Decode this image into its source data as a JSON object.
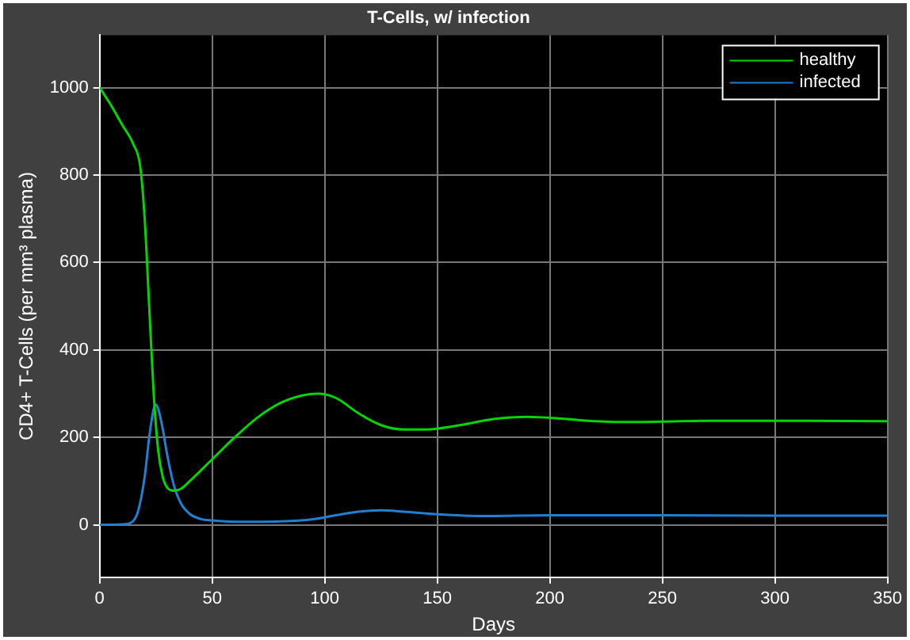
{
  "chart_data": {
    "type": "line",
    "title": "T-Cells, w/ infection",
    "xlabel": "Days",
    "ylabel": "CD4+ T-Cells (per mm³ plasma)",
    "xlim": [
      0,
      350
    ],
    "xticks": [
      0,
      50,
      100,
      150,
      200,
      250,
      300,
      350
    ],
    "ylim": [
      -120,
      1120
    ],
    "yticks": [
      0,
      200,
      400,
      600,
      800,
      1000
    ],
    "grid": true,
    "legend": "top right",
    "marker": "none",
    "line_style": "solid",
    "series": [
      {
        "name": "healthy",
        "color": "#00d600",
        "x": [
          0,
          5,
          10,
          15,
          18,
          20,
          22,
          24,
          26,
          28,
          30,
          33,
          36,
          40,
          50,
          60,
          70,
          80,
          90,
          97,
          105,
          115,
          125,
          135,
          145,
          160,
          175,
          190,
          205,
          220,
          235,
          250,
          270,
          300,
          350
        ],
        "values": [
          1000,
          960,
          915,
          870,
          820,
          700,
          500,
          300,
          170,
          110,
          85,
          78,
          82,
          100,
          150,
          200,
          245,
          278,
          296,
          300,
          290,
          255,
          228,
          218,
          218,
          228,
          242,
          247,
          243,
          237,
          235,
          236,
          238,
          238,
          237
        ]
      },
      {
        "name": "infected",
        "color": "#1f7fd0",
        "x": [
          0,
          10,
          14,
          17,
          20,
          22,
          24,
          25,
          26,
          28,
          30,
          33,
          36,
          40,
          45,
          50,
          60,
          80,
          95,
          105,
          115,
          125,
          135,
          150,
          170,
          200,
          250,
          300,
          350
        ],
        "values": [
          0,
          1,
          5,
          30,
          110,
          200,
          265,
          275,
          265,
          220,
          160,
          90,
          50,
          25,
          13,
          10,
          7,
          8,
          13,
          22,
          30,
          33,
          30,
          24,
          20,
          22,
          22,
          21,
          21
        ]
      }
    ]
  }
}
